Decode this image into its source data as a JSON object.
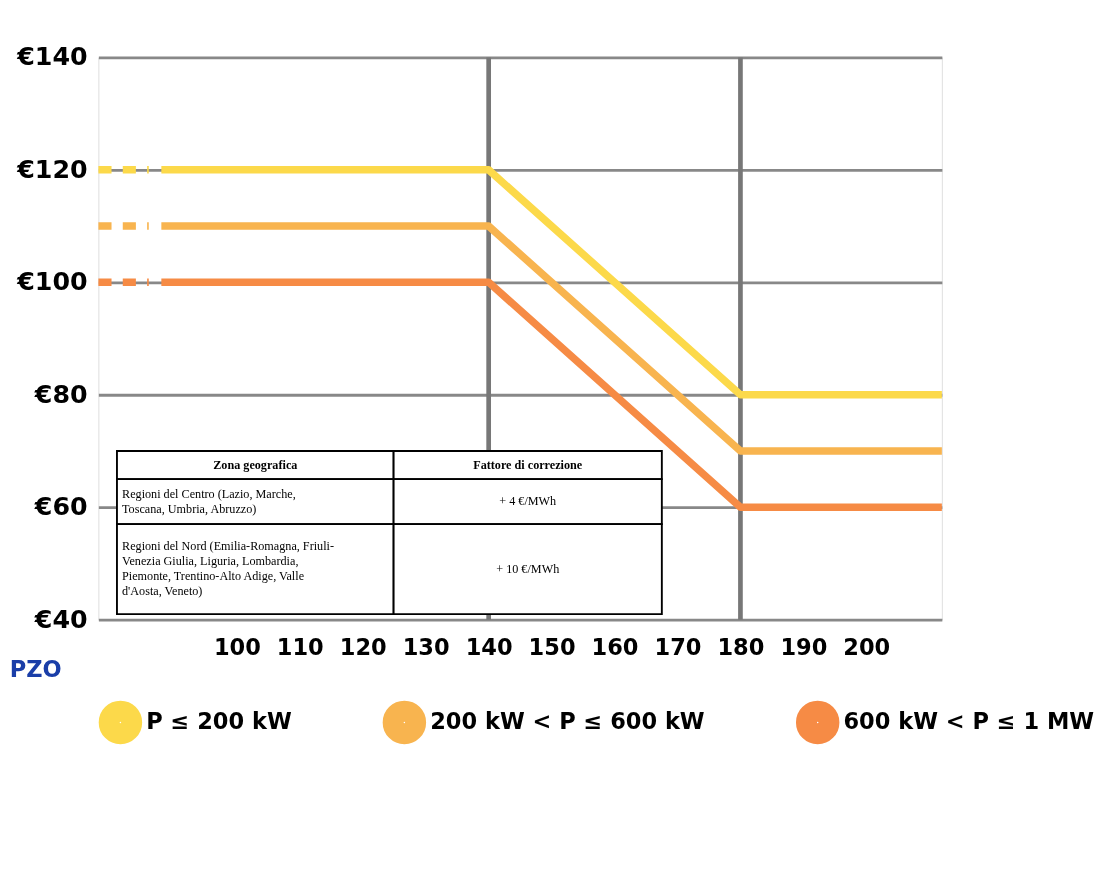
{
  "chart_data": {
    "type": "line",
    "xlabel": "PZO",
    "xlim": [
      78,
      212
    ],
    "ylim": [
      40,
      140
    ],
    "xticks": [
      100,
      110,
      120,
      130,
      140,
      150,
      160,
      170,
      180,
      190,
      200
    ],
    "yticks": [
      {
        "value": 40,
        "label": "€40"
      },
      {
        "value": 60,
        "label": "€60"
      },
      {
        "value": 80,
        "label": "€80"
      },
      {
        "value": 100,
        "label": "€100"
      },
      {
        "value": 120,
        "label": "€120"
      },
      {
        "value": 140,
        "label": "€140"
      }
    ],
    "grid": "y",
    "legend": "bottom",
    "line_style": "solid",
    "marker": "none",
    "ref_lines": [
      {
        "axis": "x",
        "value": 140,
        "color": "#777777"
      },
      {
        "axis": "x",
        "value": 180,
        "color": "#777777"
      }
    ],
    "series": [
      {
        "name": "P ≤ 200 kW",
        "color": "#fcd94a",
        "x": [
          88,
          140,
          180,
          212
        ],
        "values": [
          120,
          120,
          80,
          80
        ]
      },
      {
        "name": "200 kW < P ≤ 600 kW",
        "color": "#f8b44f",
        "x": [
          88,
          140,
          180,
          212
        ],
        "values": [
          110,
          110,
          70,
          70
        ]
      },
      {
        "name": "600 kW < P ≤ 1 MW",
        "color": "#f68b45",
        "x": [
          88,
          140,
          180,
          212
        ],
        "values": [
          100,
          100,
          60,
          60
        ]
      },
      {
        "color": "#fcd94a",
        "x": [
          78,
          86
        ],
        "values": [
          120,
          120
        ],
        "line_style": "dashed"
      },
      {
        "color": "#f8b44f",
        "x": [
          78,
          86
        ],
        "values": [
          110,
          110
        ],
        "line_style": "dashed"
      },
      {
        "color": "#f68b45",
        "x": [
          78,
          86
        ],
        "values": [
          100,
          100
        ],
        "line_style": "dashed"
      }
    ],
    "annotations": [
      "Zona geografica",
      "Fattore di correzione",
      "Regioni del Centro (Lazio, Marche, Toscana, Umbria, Abruzzo)",
      "+ 4 €/MWh",
      "Regioni del Nord (Emilia-Romagna, Friuli-Venezia Giulia, Liguria, Lombardia, Piemonte, Trentino-Alto Adige, Valle d'Aosta, Veneto)",
      "+ 10 €/MWh"
    ]
  }
}
